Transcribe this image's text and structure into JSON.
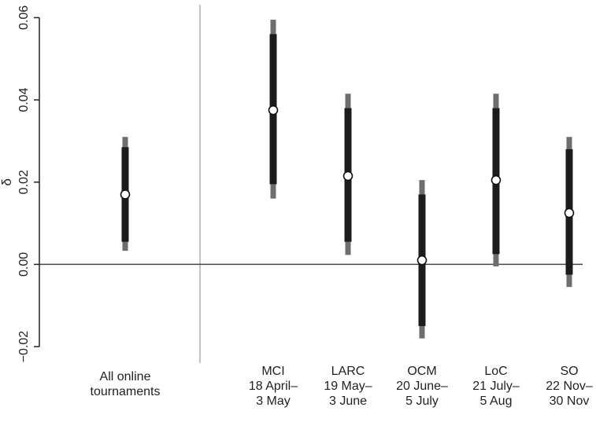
{
  "chart_data": {
    "type": "errorbar",
    "ylabel": "δ",
    "ylim": [
      -0.024,
      0.062
    ],
    "yticks": [
      -0.02,
      0.0,
      0.02,
      0.04,
      0.06
    ],
    "ytick_labels": [
      "−0.02",
      "0.00",
      "0.02",
      "0.04",
      "0.06"
    ],
    "reference_line_y": 0.0,
    "separator_after_category": 0,
    "categories": [
      {
        "label_lines": [
          "All online",
          "tournaments"
        ],
        "estimate": 0.017,
        "ci_inner": [
          0.0055,
          0.0285
        ],
        "ci_outer": [
          0.0033,
          0.031
        ]
      },
      {
        "label_lines": [
          "MCI",
          "18 April–",
          "3 May"
        ],
        "estimate": 0.0375,
        "ci_inner": [
          0.0195,
          0.056
        ],
        "ci_outer": [
          0.016,
          0.0595
        ]
      },
      {
        "label_lines": [
          "LARC",
          "19 May–",
          "3 June"
        ],
        "estimate": 0.0215,
        "ci_inner": [
          0.0055,
          0.038
        ],
        "ci_outer": [
          0.0023,
          0.0415
        ]
      },
      {
        "label_lines": [
          "OCM",
          "20 June–",
          "5 July"
        ],
        "estimate": 0.001,
        "ci_inner": [
          -0.015,
          0.017
        ],
        "ci_outer": [
          -0.018,
          0.0205
        ]
      },
      {
        "label_lines": [
          "LoC",
          "21 July–",
          "5 Aug"
        ],
        "estimate": 0.0205,
        "ci_inner": [
          0.0025,
          0.038
        ],
        "ci_outer": [
          -0.0005,
          0.0415
        ]
      },
      {
        "label_lines": [
          "SO",
          "22 Nov–",
          "30 Nov"
        ],
        "estimate": 0.0125,
        "ci_inner": [
          -0.0025,
          0.028
        ],
        "ci_outer": [
          -0.0055,
          0.031
        ]
      }
    ],
    "colors": {
      "inner_ci": "#1c1c1c",
      "outer_ci": "#6e6e6e",
      "marker_fill": "#ffffff",
      "marker_stroke": "#111111",
      "axis": "#222222",
      "zero_line": "#444444",
      "separator": "#b0b0b0"
    }
  }
}
